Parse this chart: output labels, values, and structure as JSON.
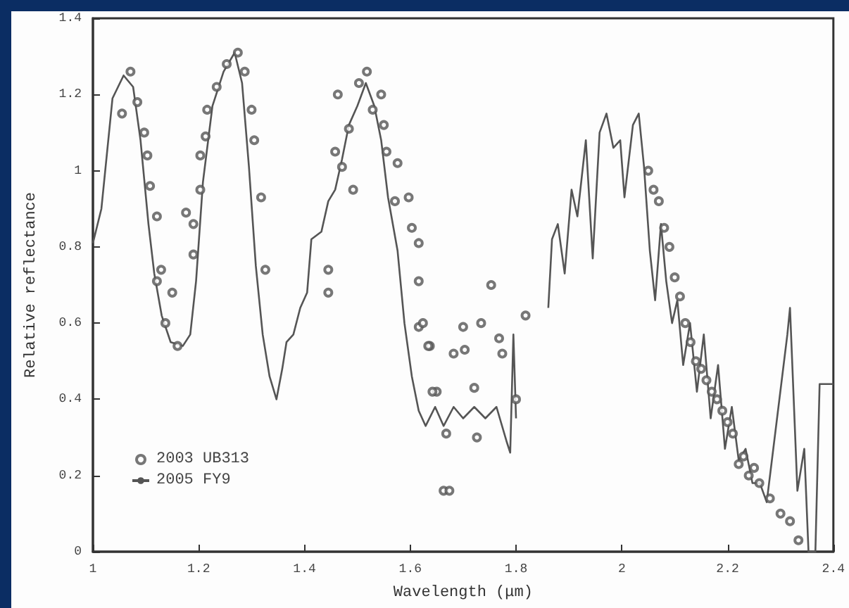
{
  "chart_data": {
    "type": "scatter",
    "xlabel": "Wavelength (μm)",
    "ylabel": "Relative reflectance",
    "xlim": [
      1,
      2.4
    ],
    "xticks": [
      1,
      1.2,
      1.4,
      1.6,
      1.8,
      2,
      2.2,
      2.4
    ],
    "ylim": [
      0,
      1.4
    ],
    "yticks": [
      0,
      0.2,
      0.4,
      0.6,
      0.8,
      1,
      1.2,
      1.4
    ],
    "grid": false,
    "legend": "bottom left",
    "series": [
      {
        "name": "2003 UB313",
        "marker": "circle",
        "color": "#555555",
        "x": [
          1.071,
          1.055,
          1.084,
          1.097,
          1.103,
          1.108,
          1.121,
          1.129,
          1.121,
          1.15,
          1.137,
          1.16,
          1.176,
          1.19,
          1.19,
          1.203,
          1.203,
          1.213,
          1.216,
          1.234,
          1.253,
          1.274,
          1.287,
          1.3,
          1.305,
          1.318,
          1.326,
          1.445,
          1.445,
          1.463,
          1.458,
          1.471,
          1.492,
          1.484,
          1.503,
          1.518,
          1.529,
          1.545,
          1.55,
          1.555,
          1.576,
          1.571,
          1.597,
          1.603,
          1.616,
          1.616,
          1.616,
          1.637,
          1.65,
          1.663,
          1.624,
          1.634,
          1.642,
          1.668,
          1.674,
          1.682,
          1.7,
          1.703,
          1.734,
          1.753,
          1.768,
          1.774,
          1.721,
          1.726,
          1.818,
          1.8,
          2.05,
          2.06,
          2.07,
          2.08,
          2.09,
          2.1,
          2.11,
          2.12,
          2.13,
          2.14,
          2.15,
          2.16,
          2.17,
          2.18,
          2.19,
          2.2,
          2.21,
          2.221,
          2.23,
          2.24,
          2.25,
          2.26,
          2.28,
          2.3,
          2.318,
          2.334
        ],
        "values": [
          1.26,
          1.15,
          1.18,
          1.1,
          1.04,
          0.96,
          0.88,
          0.74,
          0.71,
          0.68,
          0.6,
          0.54,
          0.89,
          0.86,
          0.78,
          0.95,
          1.04,
          1.09,
          1.16,
          1.22,
          1.28,
          1.31,
          1.26,
          1.16,
          1.08,
          0.93,
          0.74,
          0.74,
          0.68,
          1.2,
          1.05,
          1.01,
          0.95,
          1.11,
          1.23,
          1.26,
          1.16,
          1.2,
          1.12,
          1.05,
          1.02,
          0.92,
          0.93,
          0.85,
          0.81,
          0.71,
          0.59,
          0.54,
          0.42,
          0.16,
          0.6,
          0.54,
          0.42,
          0.31,
          0.16,
          0.52,
          0.59,
          0.53,
          0.6,
          0.7,
          0.56,
          0.52,
          0.43,
          0.3,
          0.62,
          0.4,
          1.0,
          0.95,
          0.92,
          0.85,
          0.8,
          0.72,
          0.67,
          0.6,
          0.55,
          0.5,
          0.48,
          0.45,
          0.42,
          0.4,
          0.37,
          0.34,
          0.31,
          0.23,
          0.25,
          0.2,
          0.22,
          0.18,
          0.14,
          0.1,
          0.08,
          0.03
        ]
      },
      {
        "name": "2005 FY9",
        "type": "line",
        "marker": "none",
        "line_style": "solid",
        "color": "#555555",
        "x": [
          1.0,
          1.016,
          1.037,
          1.058,
          1.076,
          1.09,
          1.105,
          1.116,
          1.13,
          1.147,
          1.17,
          1.184,
          1.195,
          1.208,
          1.226,
          1.247,
          1.268,
          1.282,
          1.295,
          1.308,
          1.321,
          1.334,
          1.347,
          1.358,
          1.366,
          1.379,
          1.392,
          1.405,
          1.413,
          1.432,
          1.445,
          1.458,
          1.471,
          1.484,
          1.5,
          1.516,
          1.532,
          1.545,
          1.558,
          1.576,
          1.589,
          1.603,
          1.616,
          1.629,
          1.647,
          1.663,
          1.682,
          1.7,
          1.721,
          1.742,
          1.763,
          1.782,
          1.789,
          1.795,
          1.8,
          1.83,
          1.861,
          1.868,
          1.879,
          1.892,
          1.905,
          1.916,
          1.932,
          1.945,
          1.958,
          1.971,
          1.984,
          1.997,
          2.005,
          2.021,
          2.032,
          2.042,
          2.053,
          2.063,
          2.074,
          2.084,
          2.095,
          2.105,
          2.116,
          2.129,
          2.142,
          2.155,
          2.168,
          2.182,
          2.195,
          2.208,
          2.221,
          2.234,
          2.247,
          2.261,
          2.274,
          2.313,
          2.318,
          2.332,
          2.345,
          2.353,
          2.366,
          2.374,
          2.4
        ],
        "values": [
          0.81,
          0.9,
          1.19,
          1.25,
          1.22,
          1.08,
          0.86,
          0.73,
          0.62,
          0.55,
          0.54,
          0.57,
          0.71,
          0.97,
          1.17,
          1.26,
          1.31,
          1.23,
          1.01,
          0.75,
          0.57,
          0.46,
          0.4,
          0.48,
          0.55,
          0.57,
          0.64,
          0.68,
          0.82,
          0.84,
          0.92,
          0.95,
          1.03,
          1.12,
          1.17,
          1.23,
          1.17,
          1.08,
          0.93,
          0.79,
          0.6,
          0.46,
          0.37,
          0.33,
          0.38,
          0.33,
          0.38,
          0.35,
          0.38,
          0.35,
          0.38,
          0.29,
          0.26,
          0.57,
          0.35,
          null,
          0.64,
          0.82,
          0.86,
          0.73,
          0.95,
          0.88,
          1.08,
          0.77,
          1.1,
          1.15,
          1.06,
          1.08,
          0.93,
          1.12,
          1.15,
          1.01,
          0.79,
          0.66,
          0.86,
          0.71,
          0.6,
          0.66,
          0.49,
          0.6,
          0.42,
          0.57,
          0.35,
          0.49,
          0.27,
          0.38,
          0.24,
          0.27,
          0.18,
          0.18,
          0.13,
          0.57,
          0.64,
          0.16,
          0.27,
          0.0,
          0.0,
          0.44,
          0.44
        ]
      }
    ]
  }
}
